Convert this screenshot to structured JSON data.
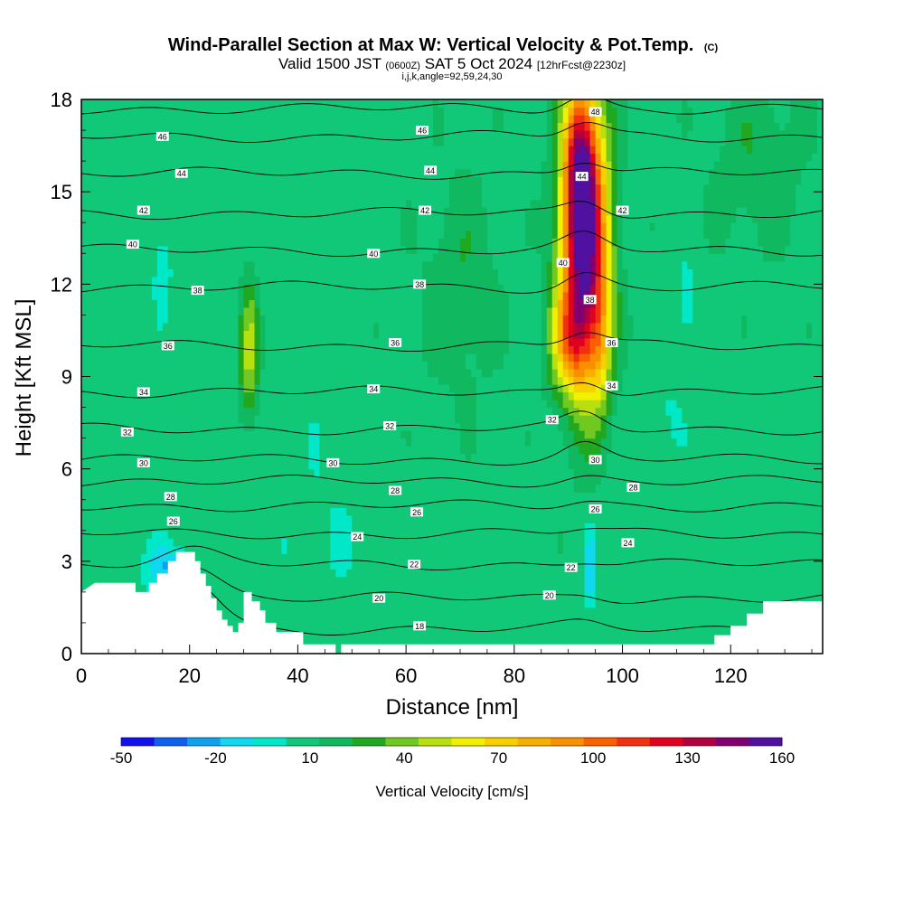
{
  "header": {
    "title": "Wind-Parallel Section at Max W: Vertical Velocity & Pot.Temp.",
    "copyright": "(C)",
    "valid_a": "Valid 1500 JST",
    "valid_z": "(0600Z)",
    "valid_b": "SAT 5 Oct 2024",
    "valid_fcst": "[12hrFcst@2230z]",
    "params": "i,j,k,angle=92,59,24,30"
  },
  "chart_data": {
    "type": "heatmap",
    "xlabel": "Distance [nm]",
    "ylabel": "Height [Kft MSL]",
    "xlim": [
      0,
      137
    ],
    "ylim": [
      0,
      18
    ],
    "x_ticks": [
      0,
      20,
      40,
      60,
      80,
      100,
      120
    ],
    "y_ticks": [
      0,
      3,
      6,
      9,
      12,
      15,
      18
    ],
    "colorbar": {
      "label": "Vertical Velocity [cm/s]",
      "range": [
        -50,
        160
      ],
      "tick_values": [
        -50,
        -20,
        10,
        40,
        70,
        100,
        130,
        160
      ],
      "colors": [
        "#1010f0",
        "#1060f0",
        "#10a0f0",
        "#10d8f0",
        "#00e8c8",
        "#10c878",
        "#10b860",
        "#20a820",
        "#70c820",
        "#b8e010",
        "#f0f000",
        "#f8d000",
        "#f8b000",
        "#f89000",
        "#f86000",
        "#f03010",
        "#e00020",
        "#b00040",
        "#800070",
        "#5010a0"
      ]
    },
    "background_w": 8,
    "w_field": [
      {
        "x": 93,
        "y": 13.5,
        "sx": 3.0,
        "sy": 3.2,
        "w": 150
      },
      {
        "x": 92,
        "y": 16.0,
        "sx": 1.8,
        "sy": 1.8,
        "w": 55
      },
      {
        "x": 90,
        "y": 10.2,
        "sx": 2.5,
        "sy": 1.2,
        "w": 50
      },
      {
        "x": 96,
        "y": 10.0,
        "sx": 1.5,
        "sy": 1.5,
        "w": 30
      },
      {
        "x": 31,
        "y": 9.8,
        "sx": 1.2,
        "sy": 1.6,
        "w": 40
      },
      {
        "x": 94,
        "y": 2.8,
        "sx": 0.5,
        "sy": 0.8,
        "w": -35
      },
      {
        "x": 16,
        "y": 2.8,
        "sx": 3.0,
        "sy": 0.5,
        "w": -25
      },
      {
        "x": 15,
        "y": 12.5,
        "sx": 1.0,
        "sy": 0.8,
        "w": -18
      },
      {
        "x": 112,
        "y": 11.5,
        "sx": 1.0,
        "sy": 0.7,
        "w": -18
      },
      {
        "x": 108,
        "y": 8.0,
        "sx": 2.0,
        "sy": 1.0,
        "w": -6
      },
      {
        "x": 45,
        "y": 4.0,
        "sx": 4.0,
        "sy": 2.0,
        "w": -5
      },
      {
        "x": 70,
        "y": 12.0,
        "sx": 5.0,
        "sy": 2.5,
        "w": 14
      },
      {
        "x": 125,
        "y": 16.0,
        "sx": 6.0,
        "sy": 2.0,
        "w": 14
      }
    ],
    "isentropes": [
      {
        "label": "18",
        "y": 0.8
      },
      {
        "label": "20",
        "y": 1.8
      },
      {
        "label": "22",
        "y": 2.9
      },
      {
        "label": "24",
        "y": 3.9
      },
      {
        "label": "26",
        "y": 4.8
      },
      {
        "label": "28",
        "y": 5.6
      },
      {
        "label": "30",
        "y": 6.3
      },
      {
        "label": "32",
        "y": 7.3
      },
      {
        "label": "34",
        "y": 8.5
      },
      {
        "label": "36",
        "y": 10.0
      },
      {
        "label": "38",
        "y": 11.9
      },
      {
        "label": "40",
        "y": 13.1
      },
      {
        "label": "42",
        "y": 14.3
      },
      {
        "label": "44",
        "y": 15.6
      },
      {
        "label": "46",
        "y": 16.8
      },
      {
        "label": "48",
        "y": 17.7
      }
    ],
    "isentrope_labels": [
      {
        "label": "46",
        "x": 15.0,
        "y": 16.8
      },
      {
        "label": "46",
        "x": 63.0,
        "y": 17.0
      },
      {
        "label": "48",
        "x": 95.0,
        "y": 17.6
      },
      {
        "label": "44",
        "x": 18.5,
        "y": 15.6
      },
      {
        "label": "44",
        "x": 64.5,
        "y": 15.7
      },
      {
        "label": "44",
        "x": 92.5,
        "y": 15.5
      },
      {
        "label": "42",
        "x": 11.5,
        "y": 14.4
      },
      {
        "label": "42",
        "x": 63.5,
        "y": 14.4
      },
      {
        "label": "42",
        "x": 100.0,
        "y": 14.4
      },
      {
        "label": "40",
        "x": 9.5,
        "y": 13.3
      },
      {
        "label": "40",
        "x": 54.0,
        "y": 13.0
      },
      {
        "label": "40",
        "x": 89.0,
        "y": 12.7
      },
      {
        "label": "38",
        "x": 21.5,
        "y": 11.8
      },
      {
        "label": "38",
        "x": 62.5,
        "y": 12.0
      },
      {
        "label": "38",
        "x": 94.0,
        "y": 11.5
      },
      {
        "label": "36",
        "x": 16.0,
        "y": 10.0
      },
      {
        "label": "36",
        "x": 58.0,
        "y": 10.1
      },
      {
        "label": "36",
        "x": 98.0,
        "y": 10.1
      },
      {
        "label": "34",
        "x": 11.5,
        "y": 8.5
      },
      {
        "label": "34",
        "x": 54.0,
        "y": 8.6
      },
      {
        "label": "34",
        "x": 98.0,
        "y": 8.7
      },
      {
        "label": "32",
        "x": 8.5,
        "y": 7.2
      },
      {
        "label": "32",
        "x": 57.0,
        "y": 7.4
      },
      {
        "label": "32",
        "x": 87.0,
        "y": 7.6
      },
      {
        "label": "30",
        "x": 11.5,
        "y": 6.2
      },
      {
        "label": "30",
        "x": 46.5,
        "y": 6.2
      },
      {
        "label": "30",
        "x": 95.0,
        "y": 6.3
      },
      {
        "label": "28",
        "x": 16.5,
        "y": 5.1
      },
      {
        "label": "28",
        "x": 58.0,
        "y": 5.3
      },
      {
        "label": "28",
        "x": 102.0,
        "y": 5.4
      },
      {
        "label": "26",
        "x": 17.0,
        "y": 4.3
      },
      {
        "label": "26",
        "x": 62.0,
        "y": 4.6
      },
      {
        "label": "26",
        "x": 95.0,
        "y": 4.7
      },
      {
        "label": "24",
        "x": 51.0,
        "y": 3.8
      },
      {
        "label": "24",
        "x": 101.0,
        "y": 3.6
      },
      {
        "label": "22",
        "x": 61.5,
        "y": 2.9
      },
      {
        "label": "22",
        "x": 90.5,
        "y": 2.8
      },
      {
        "label": "20",
        "x": 55.0,
        "y": 1.8
      },
      {
        "label": "20",
        "x": 86.5,
        "y": 1.9
      },
      {
        "label": "18",
        "x": 62.5,
        "y": 0.9
      }
    ],
    "terrain": [
      [
        0,
        2.0
      ],
      [
        2.5,
        2.3
      ],
      [
        10,
        2.3
      ],
      [
        10,
        2.0
      ],
      [
        12.5,
        2.0
      ],
      [
        12.5,
        2.3
      ],
      [
        14,
        2.3
      ],
      [
        14,
        2.6
      ],
      [
        16,
        2.6
      ],
      [
        16,
        3.0
      ],
      [
        17.5,
        3.0
      ],
      [
        17.5,
        3.3
      ],
      [
        21,
        3.3
      ],
      [
        21,
        3.0
      ],
      [
        22,
        3.0
      ],
      [
        22,
        2.6
      ],
      [
        23,
        2.6
      ],
      [
        23,
        2.2
      ],
      [
        24,
        2.2
      ],
      [
        24,
        1.8
      ],
      [
        25,
        1.8
      ],
      [
        25,
        1.4
      ],
      [
        26,
        1.4
      ],
      [
        26,
        1.1
      ],
      [
        27,
        1.1
      ],
      [
        27,
        0.9
      ],
      [
        28,
        0.9
      ],
      [
        28,
        0.7
      ],
      [
        29,
        0.7
      ],
      [
        29,
        1.0
      ],
      [
        30,
        1.0
      ],
      [
        30,
        2.0
      ],
      [
        31.5,
        2.0
      ],
      [
        31.5,
        1.7
      ],
      [
        33,
        1.7
      ],
      [
        33,
        1.4
      ],
      [
        34,
        1.4
      ],
      [
        34,
        1.0
      ],
      [
        36,
        1.0
      ],
      [
        36,
        0.7
      ],
      [
        41,
        0.7
      ],
      [
        41,
        0.3
      ],
      [
        47,
        0.3
      ],
      [
        47,
        0.0
      ],
      [
        48,
        0.0
      ],
      [
        48,
        0.3
      ],
      [
        117,
        0.3
      ],
      [
        117,
        0.6
      ],
      [
        120,
        0.6
      ],
      [
        120,
        0.9
      ],
      [
        123,
        0.9
      ],
      [
        123,
        1.3
      ],
      [
        126,
        1.3
      ],
      [
        126,
        1.7
      ],
      [
        137,
        1.7
      ]
    ]
  }
}
